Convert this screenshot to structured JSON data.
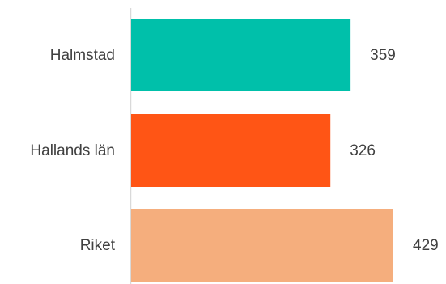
{
  "chart_data": {
    "type": "bar",
    "orientation": "horizontal",
    "categories": [
      "Halmstad",
      "Hallands län",
      "Riket"
    ],
    "values": [
      359,
      326,
      429
    ],
    "colors": [
      "#00C0AA",
      "#FF5515",
      "#F5AE7D"
    ],
    "value_labels": [
      "359",
      "326",
      "429"
    ],
    "xlim": [
      0,
      429
    ],
    "grid": false,
    "legend": "none"
  }
}
